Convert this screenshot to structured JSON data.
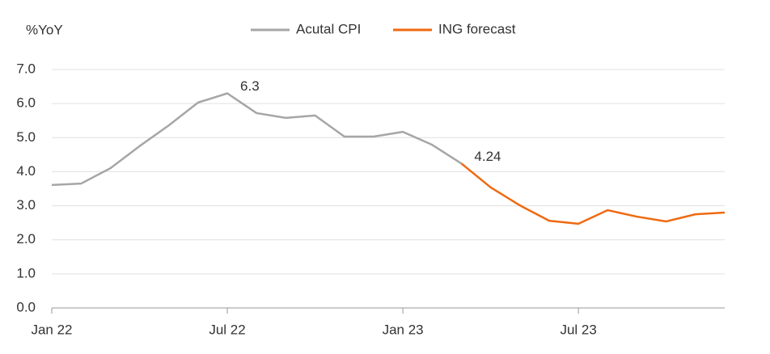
{
  "chart_data": {
    "type": "line",
    "y_label": "%YoY",
    "categories": [
      "Jan 22",
      null,
      null,
      null,
      null,
      null,
      "Jul 22",
      null,
      null,
      null,
      null,
      null,
      "Jan 23",
      null,
      null,
      null,
      null,
      null,
      "Jul 23",
      null,
      null,
      null,
      null,
      null
    ],
    "series": [
      {
        "name": "Acutal CPI",
        "color": "#a6a6a6",
        "values": [
          3.61,
          3.65,
          4.1,
          4.75,
          5.36,
          6.03,
          6.3,
          5.72,
          5.58,
          5.65,
          5.03,
          5.03,
          5.17,
          4.79,
          4.24,
          null,
          null,
          null,
          null,
          null,
          null,
          null,
          null,
          null
        ],
        "value_labels": [
          null,
          null,
          null,
          null,
          null,
          null,
          "6.3",
          null,
          null,
          null,
          null,
          null,
          null,
          null,
          "4.24",
          null,
          null,
          null,
          null,
          null,
          null,
          null,
          null,
          null
        ]
      },
      {
        "name": "ING forecast",
        "color": "#ee6a10",
        "values": [
          null,
          null,
          null,
          null,
          null,
          null,
          null,
          null,
          null,
          null,
          null,
          null,
          null,
          null,
          4.24,
          3.54,
          3.01,
          2.56,
          2.47,
          2.87,
          2.68,
          2.54,
          2.75,
          2.8
        ]
      }
    ],
    "ylim": [
      0,
      7
    ],
    "yticks": [
      {
        "value": 0,
        "label": "0.0"
      },
      {
        "value": 1,
        "label": "1.0"
      },
      {
        "value": 2,
        "label": "2.0"
      },
      {
        "value": 3,
        "label": "3.0"
      },
      {
        "value": 4,
        "label": "4.0"
      },
      {
        "value": 5,
        "label": "5.0"
      },
      {
        "value": 6,
        "label": "6.0"
      },
      {
        "value": 7,
        "label": "7.0"
      }
    ],
    "grid": true,
    "legend": "top"
  }
}
